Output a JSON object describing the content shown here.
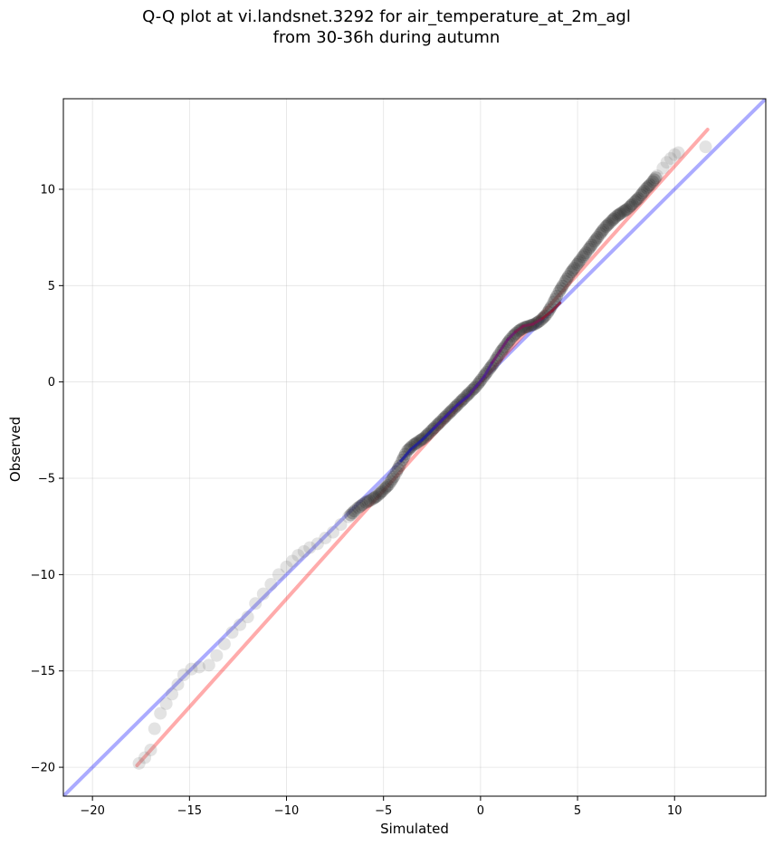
{
  "chart_data": {
    "type": "scatter",
    "title_line1": "Q-Q plot at vi.landsnet.3292 for air_temperature_at_2m_agl",
    "title_line2": "from 30-36h during autumn",
    "xlabel": "Simulated",
    "ylabel": "Observed",
    "xlim": [
      -21.5,
      14.7
    ],
    "ylim": [
      -21.5,
      14.7
    ],
    "xticks": [
      -20,
      -15,
      -10,
      -5,
      0,
      5,
      10
    ],
    "yticks": [
      -20,
      -15,
      -10,
      -5,
      0,
      5,
      10
    ],
    "grid": true,
    "reference_line": {
      "slope": 1,
      "intercept": 0,
      "color": "#0000ff"
    },
    "fit_line": {
      "x": [
        -17.7,
        11.7
      ],
      "y": [
        -19.9,
        13.1
      ],
      "color": "#ff0000"
    },
    "quantile_curve": {
      "x": [
        -4.1,
        -3.6,
        -3.0,
        -2.4,
        -1.8,
        -1.2,
        -0.6,
        -0.2,
        0.2,
        0.6,
        1.0,
        1.4,
        1.8,
        2.2,
        2.7,
        3.2,
        3.7,
        4.1
      ],
      "y": [
        -4.1,
        -3.5,
        -3.0,
        -2.4,
        -1.8,
        -1.2,
        -0.7,
        -0.2,
        0.3,
        1.0,
        1.6,
        2.2,
        2.6,
        2.9,
        3.0,
        3.3,
        3.7,
        4.1
      ],
      "colors": [
        "#1f1f9f",
        "#3a1aa0",
        "#4e1e8f",
        "#6a1a6f",
        "#7a1a4f",
        "#8a1a2f"
      ]
    },
    "points": {
      "x": [
        -17.6,
        -17.3,
        -17.0,
        -16.8,
        -16.5,
        -16.2,
        -15.9,
        -15.6,
        -15.3,
        -14.9,
        -14.5,
        -14.0,
        -13.6,
        -13.2,
        -12.8,
        -12.4,
        -12.0,
        -11.6,
        -11.2,
        -10.8,
        -10.4,
        -10.0,
        -9.7,
        -9.4,
        -9.1,
        -8.8,
        -8.4,
        -8.0,
        -7.6,
        -7.2,
        -6.8,
        -6.4,
        -6.0,
        -5.6,
        -5.3,
        -5.0,
        -4.7,
        -4.4,
        -4.1,
        -3.8,
        -3.5,
        -3.2,
        -2.9,
        -2.6,
        -2.3,
        -2.0,
        -1.7,
        -1.4,
        -1.1,
        -0.8,
        -0.5,
        -0.2,
        0.1,
        0.4,
        0.7,
        1.0,
        1.3,
        1.6,
        1.9,
        2.2,
        2.5,
        2.8,
        3.1,
        3.4,
        3.7,
        4.0,
        4.3,
        4.6,
        4.9,
        5.2,
        5.5,
        5.8,
        6.1,
        6.4,
        6.7,
        7.0,
        7.3,
        7.6,
        7.9,
        8.2,
        8.5,
        8.8,
        9.1,
        9.4,
        9.6,
        9.8,
        10.0,
        10.2,
        11.6
      ],
      "y": [
        -19.8,
        -19.5,
        -19.1,
        -18.0,
        -17.2,
        -16.7,
        -16.2,
        -15.7,
        -15.2,
        -14.9,
        -14.8,
        -14.7,
        -14.2,
        -13.6,
        -13.0,
        -12.6,
        -12.2,
        -11.5,
        -11.0,
        -10.5,
        -10.0,
        -9.6,
        -9.3,
        -9.0,
        -8.8,
        -8.6,
        -8.4,
        -8.1,
        -7.8,
        -7.4,
        -7.0,
        -6.6,
        -6.3,
        -6.1,
        -5.9,
        -5.6,
        -5.3,
        -4.8,
        -4.2,
        -3.6,
        -3.3,
        -3.1,
        -2.9,
        -2.6,
        -2.3,
        -2.0,
        -1.7,
        -1.4,
        -1.1,
        -0.8,
        -0.5,
        -0.2,
        0.2,
        0.6,
        1.0,
        1.5,
        1.9,
        2.3,
        2.6,
        2.8,
        2.9,
        3.0,
        3.2,
        3.5,
        4.0,
        4.6,
        5.1,
        5.6,
        6.0,
        6.4,
        6.8,
        7.2,
        7.6,
        8.0,
        8.3,
        8.6,
        8.8,
        9.0,
        9.3,
        9.6,
        10.0,
        10.3,
        10.7,
        11.1,
        11.4,
        11.6,
        11.8,
        11.9,
        12.2
      ]
    }
  }
}
